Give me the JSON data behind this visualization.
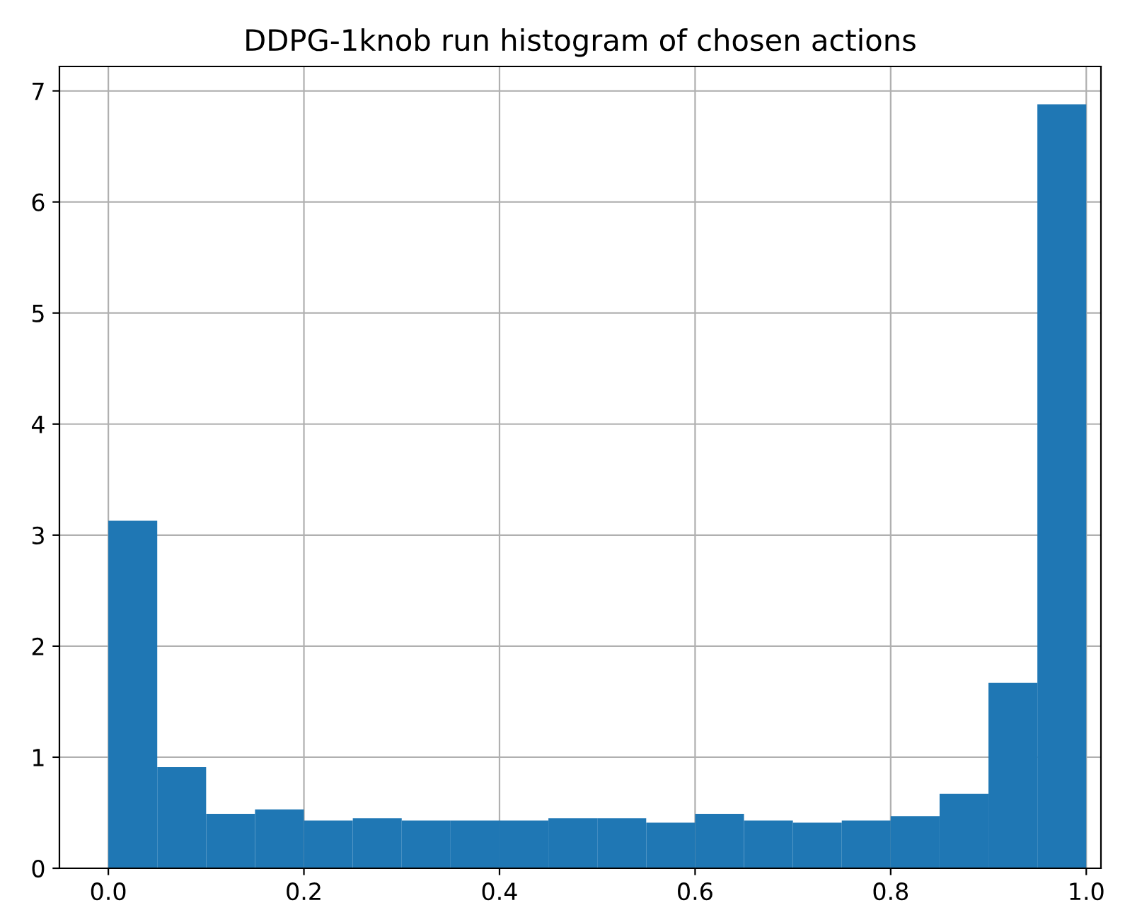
{
  "chart_data": {
    "type": "histogram",
    "title": "DDPG-1knob run histogram of chosen actions",
    "bins": [
      0.0,
      0.05,
      0.1,
      0.15,
      0.2,
      0.25,
      0.3,
      0.35,
      0.4,
      0.45,
      0.5,
      0.55,
      0.6,
      0.65,
      0.7,
      0.75,
      0.8,
      0.85,
      0.9,
      0.95,
      1.0
    ],
    "values": [
      3.13,
      0.91,
      0.49,
      0.53,
      0.43,
      0.45,
      0.43,
      0.43,
      0.43,
      0.45,
      0.45,
      0.41,
      0.49,
      0.43,
      0.41,
      0.43,
      0.47,
      0.67,
      1.67,
      6.88
    ],
    "color": "#1f77b4",
    "xlim": [
      -0.05,
      1.015
    ],
    "xticks": [
      {
        "value": 0.0,
        "label": "0.0"
      },
      0.2,
      0.4,
      0.6,
      0.8,
      {
        "value": 1.0,
        "label": "1.0"
      }
    ],
    "ylim": [
      0,
      7.22
    ],
    "yticks": [
      0,
      1,
      2,
      3,
      4,
      5,
      6,
      7
    ],
    "grid": true
  }
}
